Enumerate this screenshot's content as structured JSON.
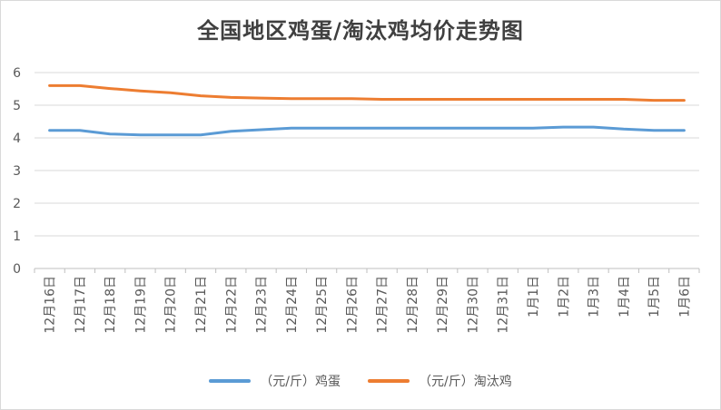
{
  "chart_data": {
    "type": "line",
    "title": "全国地区鸡蛋/淘汰鸡均价走势图",
    "xlabel": "",
    "ylabel": "",
    "ylim": [
      0,
      6
    ],
    "yticks": [
      "0",
      "1",
      "2",
      "3",
      "4",
      "5",
      "6"
    ],
    "grid": true,
    "legend": "bottom",
    "categories": [
      "12月16日",
      "12月17日",
      "12月18日",
      "12月19日",
      "12月20日",
      "12月21日",
      "12月22日",
      "12月23日",
      "12月24日",
      "12月25日",
      "12月26日",
      "12月27日",
      "12月28日",
      "12月29日",
      "12月30日",
      "12月31日",
      "1月1日",
      "1月2日",
      "1月3日",
      "1月4日",
      "1月5日",
      "1月6日"
    ],
    "series": [
      {
        "name": "（元/斤）鸡蛋",
        "color": "#5b9bd5",
        "values": [
          4.23,
          4.23,
          4.12,
          4.09,
          4.09,
          4.09,
          4.2,
          4.25,
          4.3,
          4.3,
          4.3,
          4.3,
          4.3,
          4.3,
          4.3,
          4.3,
          4.3,
          4.33,
          4.33,
          4.27,
          4.23,
          4.23
        ]
      },
      {
        "name": "（元/斤）淘汰鸡",
        "color": "#ed7d31",
        "values": [
          5.6,
          5.6,
          5.51,
          5.44,
          5.38,
          5.29,
          5.24,
          5.22,
          5.2,
          5.2,
          5.2,
          5.18,
          5.18,
          5.18,
          5.18,
          5.18,
          5.18,
          5.18,
          5.18,
          5.18,
          5.15,
          5.15
        ]
      }
    ]
  }
}
